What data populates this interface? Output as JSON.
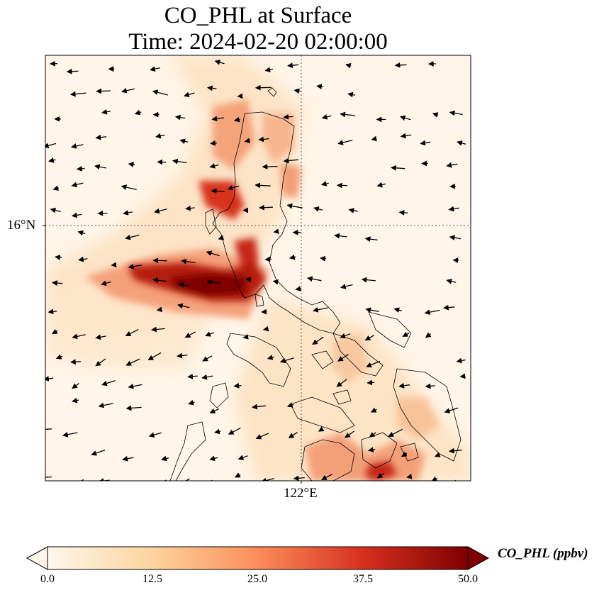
{
  "chart_data": {
    "type": "heatmap",
    "title": "CO_PHL at Surface",
    "subtitle": "Time: 2024-02-20 02:00:00",
    "variable": "CO_PHL",
    "units": "ppbv",
    "xlabel": "",
    "ylabel": "",
    "x_ticks": [
      "122°E"
    ],
    "y_ticks": [
      "16°N"
    ],
    "gridlines": "dotted at 122°E and 16°N",
    "overlays": [
      "coastlines",
      "wind vectors"
    ],
    "colormap": "OrRd",
    "colorbar": {
      "label": "CO_PHL (ppbv)",
      "range": [
        0.0,
        50.0
      ],
      "ticks": [
        "0.0",
        "12.5",
        "25.0",
        "37.5",
        "50.0"
      ],
      "extend": "both",
      "orientation": "horizontal"
    },
    "hotspots": [
      {
        "region": "plume west of central Luzon coast",
        "approx_value": 50
      },
      {
        "region": "northwest Luzon coast",
        "approx_value": 35
      },
      {
        "region": "southern Visayas / Negros area",
        "approx_value": 25
      }
    ]
  }
}
